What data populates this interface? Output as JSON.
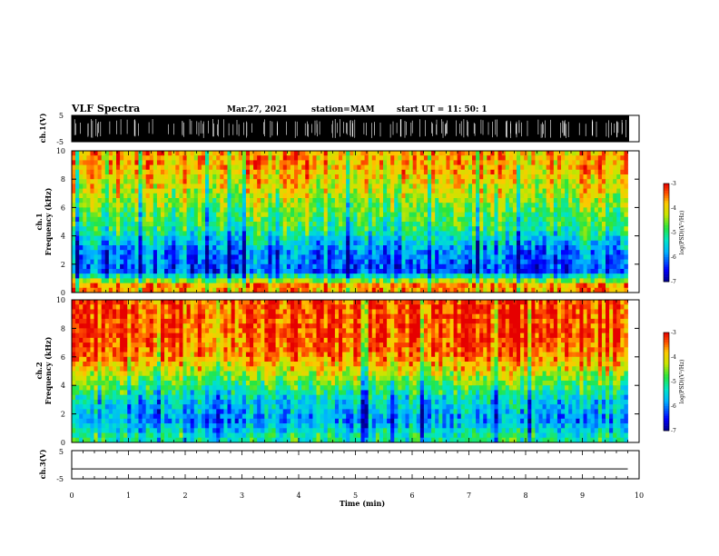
{
  "header": {
    "title": "VLF Spectra",
    "date": "Mar.27, 2021",
    "station": "station=MAM",
    "start": "start UT =   11: 50: 1"
  },
  "chart_data": [
    {
      "type": "line",
      "panel": "ch1-waveform",
      "ylabel": "ch.1(V)",
      "ylim": [
        -5,
        5
      ],
      "yticks": [
        "5",
        "-5"
      ],
      "description_series": "dense impulsive waveform saturating between -5 and 5 V"
    },
    {
      "type": "heatmap",
      "panel": "ch1-spectrogram",
      "ylabel": "ch.1\nFrequency (kHz)",
      "ylim": [
        0,
        10
      ],
      "yticks": [
        "0",
        "2",
        "4",
        "6",
        "8",
        "10"
      ],
      "colorbar": {
        "label": "log(PSD)(V²/Hz)",
        "range": [
          -7,
          -3
        ],
        "ticks": [
          "-3",
          "-4",
          "-5",
          "-6",
          "-7"
        ]
      },
      "profile_logpsd_by_freq_kHz": [
        {
          "f": 0.5,
          "v": -3.6
        },
        {
          "f": 1.5,
          "v": -6.2
        },
        {
          "f": 3,
          "v": -5.9
        },
        {
          "f": 4.5,
          "v": -5.0
        },
        {
          "f": 6,
          "v": -4.6
        },
        {
          "f": 7.5,
          "v": -4.1
        },
        {
          "f": 9,
          "v": -3.7
        }
      ]
    },
    {
      "type": "heatmap",
      "panel": "ch2-spectrogram",
      "ylabel": "ch.2\nFrequency (kHz)",
      "ylim": [
        0,
        10
      ],
      "yticks": [
        "0",
        "2",
        "4",
        "6",
        "8",
        "10"
      ],
      "colorbar": {
        "label": "log(PSD)(V²/Hz)",
        "range": [
          -7,
          -3
        ],
        "ticks": [
          "-3",
          "-4",
          "-5",
          "-6",
          "-7"
        ]
      },
      "profile_logpsd_by_freq_kHz": [
        {
          "f": 0.5,
          "v": -5.2
        },
        {
          "f": 1.5,
          "v": -5.9
        },
        {
          "f": 3,
          "v": -5.5
        },
        {
          "f": 4.5,
          "v": -4.5
        },
        {
          "f": 6,
          "v": -3.6
        },
        {
          "f": 7.5,
          "v": -3.3
        },
        {
          "f": 9,
          "v": -3.3
        }
      ]
    },
    {
      "type": "line",
      "panel": "ch3-waveform",
      "ylabel": "ch.3(V)",
      "ylim": [
        -5,
        5
      ],
      "yticks": [
        "5",
        "-5"
      ],
      "constant_value": -1.5
    }
  ],
  "xaxis": {
    "label": "Time (min)",
    "range": [
      0,
      10
    ],
    "ticks": [
      "0",
      "1",
      "2",
      "3",
      "4",
      "5",
      "6",
      "7",
      "8",
      "9",
      "10"
    ],
    "data_end": 9.8
  }
}
